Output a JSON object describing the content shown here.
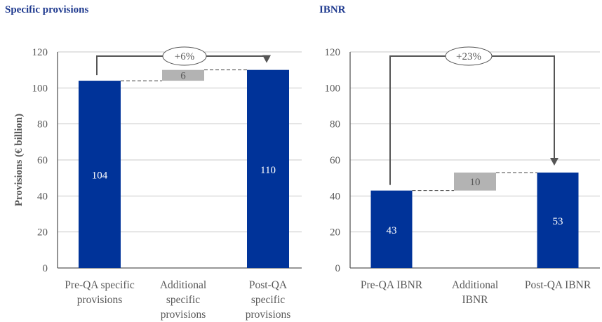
{
  "colors": {
    "bar": "#003399",
    "delta": "#b3b3b3",
    "axis": "#595959",
    "grid": "#c8c8c8",
    "title": "#1f3a8f"
  },
  "chart_data": [
    {
      "type": "bar",
      "subtype": "waterfall",
      "title": "Specific provisions",
      "ylabel": "Provisions (€ billion)",
      "ylim": [
        0,
        120
      ],
      "yticks": [
        0,
        20,
        40,
        60,
        80,
        100,
        120
      ],
      "grid": true,
      "categories": [
        [
          "Pre-QA specific",
          "provisions"
        ],
        [
          "Additional",
          "specific",
          "provisions"
        ],
        [
          "Post-QA",
          "specific",
          "provisions"
        ]
      ],
      "values": [
        104,
        6,
        110
      ],
      "labels": [
        "104",
        "6",
        "110"
      ],
      "change_label": "+6%"
    },
    {
      "type": "bar",
      "subtype": "waterfall",
      "title": "IBNR",
      "ylabel": "",
      "ylim": [
        0,
        120
      ],
      "yticks": [
        0,
        20,
        40,
        60,
        80,
        100,
        120
      ],
      "grid": true,
      "categories": [
        [
          "Pre-QA IBNR"
        ],
        [
          "Additional",
          "IBNR"
        ],
        [
          "Post-QA IBNR"
        ]
      ],
      "values": [
        43,
        10,
        53
      ],
      "labels": [
        "43",
        "10",
        "53"
      ],
      "change_label": "+23%"
    }
  ]
}
